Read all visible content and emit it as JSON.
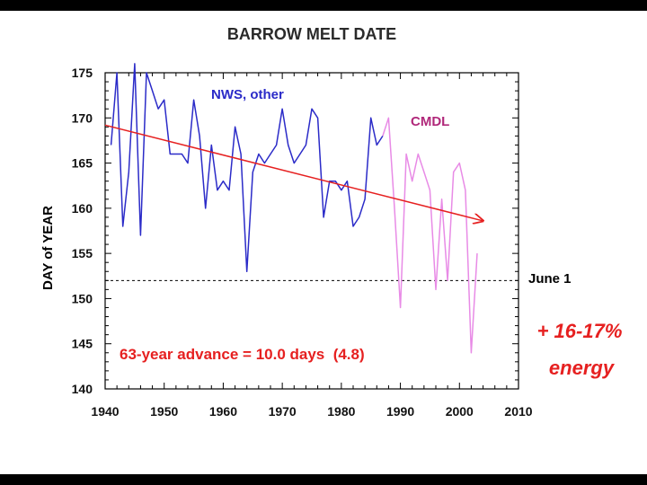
{
  "chart_data": {
    "type": "line",
    "title": "BARROW MELT DATE",
    "xlabel": "",
    "ylabel": "DAY of YEAR",
    "xlim": [
      1940,
      2010
    ],
    "ylim": [
      140,
      175
    ],
    "x_ticks": [
      1940,
      1950,
      1960,
      1970,
      1980,
      1990,
      2000,
      2010
    ],
    "y_ticks": [
      140,
      145,
      150,
      155,
      160,
      165,
      170,
      175
    ],
    "grid": false,
    "series": [
      {
        "name": "NWS, other",
        "color": "#2b2bc8",
        "x": [
          1941,
          1942,
          1943,
          1944,
          1945,
          1946,
          1947,
          1948,
          1949,
          1950,
          1951,
          1952,
          1953,
          1954,
          1955,
          1956,
          1957,
          1958,
          1959,
          1960,
          1961,
          1962,
          1963,
          1964,
          1965,
          1966,
          1967,
          1968,
          1969,
          1970,
          1971,
          1972,
          1973,
          1974,
          1975,
          1976,
          1977,
          1978,
          1979,
          1980,
          1981,
          1982,
          1983,
          1984,
          1985,
          1986,
          1987
        ],
        "values": [
          167,
          175,
          158,
          164,
          176,
          157,
          175,
          173,
          171,
          172,
          166,
          166,
          166,
          165,
          172,
          168,
          160,
          167,
          162,
          163,
          162,
          169,
          166,
          153,
          164,
          166,
          165,
          166,
          167,
          171,
          167,
          165,
          166,
          167,
          171,
          170,
          159,
          163,
          163,
          162,
          163,
          158,
          159,
          161,
          170,
          167,
          168
        ]
      },
      {
        "name": "CMDL",
        "color": "#e88be6",
        "x": [
          1987,
          1988,
          1989,
          1990,
          1991,
          1992,
          1993,
          1994,
          1995,
          1996,
          1997,
          1998,
          1999,
          2000,
          2001,
          2002,
          2003
        ],
        "values": [
          168,
          170,
          160,
          149,
          166,
          163,
          166,
          164,
          162,
          151,
          161,
          152,
          164,
          165,
          162,
          144,
          155
        ]
      }
    ],
    "trend": {
      "x": [
        1940,
        2004
      ],
      "values": [
        169.2,
        158.6
      ],
      "color": "#e62020"
    },
    "reference_line": {
      "y": 152,
      "label": "June 1"
    }
  },
  "annotations": {
    "advance": "63-year advance = 10.0 days  (4.8)",
    "energy_line1": "+ 16-17%",
    "energy_line2": "energy"
  },
  "colors": {
    "background": "#ffffff",
    "frame": "#000000",
    "annotation_red": "#e62020",
    "series_label_nws": "#2b2bc8",
    "series_label_cmdl": "#b0287a"
  }
}
